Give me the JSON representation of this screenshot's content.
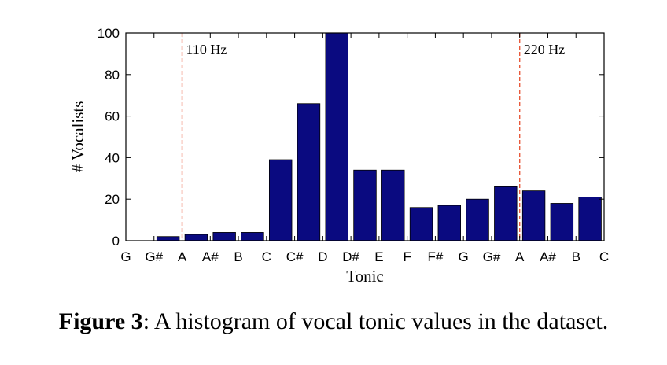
{
  "chart_data": {
    "type": "bar",
    "categories": [
      "G#",
      "A",
      "A#",
      "B",
      "C",
      "C#",
      "D",
      "D#",
      "E",
      "F",
      "F#",
      "G",
      "G#",
      "A",
      "A#",
      "B"
    ],
    "values": [
      2,
      3,
      4,
      4,
      39,
      66,
      100,
      34,
      34,
      16,
      17,
      20,
      26,
      24,
      18,
      21
    ],
    "x_tick_labels": [
      "G",
      "G#",
      "A",
      "A#",
      "B",
      "C",
      "C#",
      "D",
      "D#",
      "E",
      "F",
      "F#",
      "G",
      "G#",
      "A",
      "A#",
      "B",
      "C"
    ],
    "y_ticks": [
      0,
      20,
      40,
      60,
      80,
      100
    ],
    "ylim": [
      0,
      100
    ],
    "xlabel": "Tonic",
    "ylabel": "# Vocalists",
    "bar_color": "#0a0a80",
    "reference_lines": [
      {
        "label": "110 Hz",
        "x_index": 2,
        "color": "#e8593c"
      },
      {
        "label": "220 Hz",
        "x_index": 14,
        "color": "#e8593c"
      }
    ],
    "grid": false
  },
  "caption": {
    "label": "Figure 3",
    "text": ":  A histogram of vocal tonic values in the dataset."
  }
}
